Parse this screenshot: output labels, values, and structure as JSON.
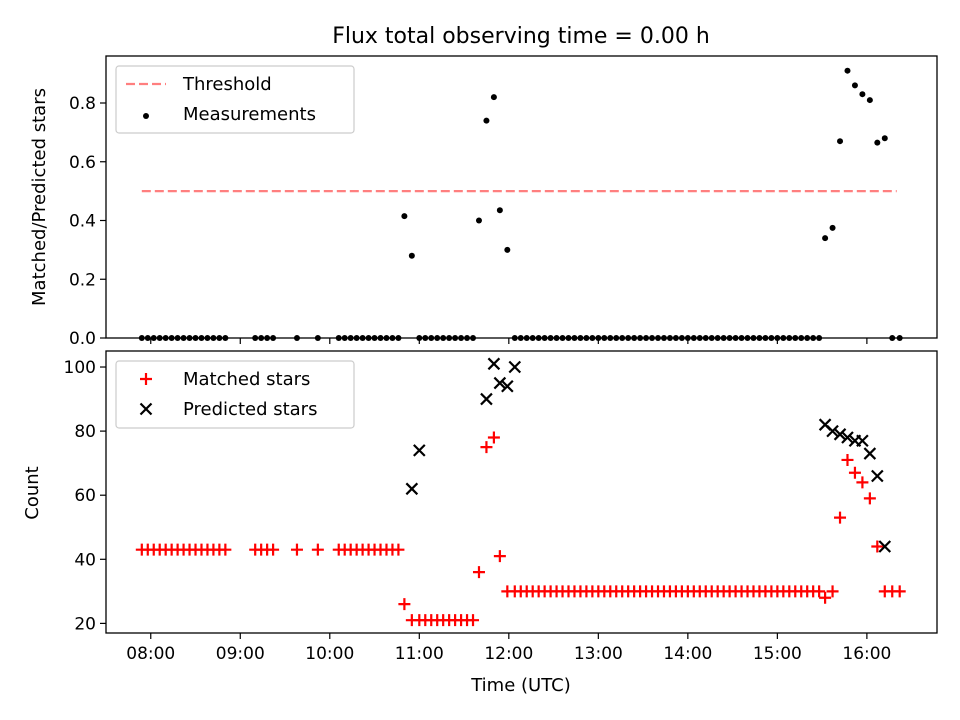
{
  "chart_data": [
    {
      "type": "scatter",
      "title": "Flux total observing time = 0.00 h",
      "xlabel": "",
      "ylabel": "Matched/Predicted stars",
      "xlim": [
        "07:30",
        "16:47"
      ],
      "ylim": [
        0,
        0.96
      ],
      "yticks": [
        0.0,
        0.2,
        0.4,
        0.6,
        0.8
      ],
      "ytick_labels": [
        "0.0",
        "0.2",
        "0.4",
        "0.6",
        "0.8"
      ],
      "legend_position": "top-left",
      "grid": false,
      "series": [
        {
          "name": "Threshold",
          "kind": "dashed-line",
          "color": "#ff7f7f",
          "x": [
            "07:54",
            "16:20"
          ],
          "y": [
            0.5,
            0.5
          ]
        },
        {
          "name": "Measurements",
          "kind": "dots",
          "color": "#000000",
          "x": [
            "07:54",
            "07:58",
            "08:02",
            "08:06",
            "08:10",
            "08:14",
            "08:18",
            "08:22",
            "08:26",
            "08:30",
            "08:34",
            "08:38",
            "08:42",
            "08:46",
            "08:50",
            "09:10",
            "09:14",
            "09:18",
            "09:22",
            "09:38",
            "09:52",
            "10:06",
            "10:10",
            "10:14",
            "10:18",
            "10:22",
            "10:26",
            "10:30",
            "10:34",
            "10:38",
            "10:42",
            "10:46",
            "10:50",
            "10:55",
            "11:00",
            "11:04",
            "11:08",
            "11:12",
            "11:16",
            "11:20",
            "11:24",
            "11:28",
            "11:32",
            "11:36",
            "11:40",
            "11:45",
            "11:50",
            "11:54",
            "11:59",
            "12:04",
            "12:08",
            "12:12",
            "12:16",
            "12:20",
            "12:24",
            "12:28",
            "12:32",
            "12:36",
            "12:40",
            "12:44",
            "12:48",
            "12:52",
            "12:56",
            "13:00",
            "13:04",
            "13:08",
            "13:12",
            "13:16",
            "13:20",
            "13:24",
            "13:28",
            "13:32",
            "13:36",
            "13:40",
            "13:44",
            "13:48",
            "13:52",
            "13:56",
            "14:00",
            "14:04",
            "14:08",
            "14:12",
            "14:16",
            "14:20",
            "14:24",
            "14:28",
            "14:32",
            "14:36",
            "14:40",
            "14:44",
            "14:48",
            "14:52",
            "14:56",
            "15:00",
            "15:04",
            "15:08",
            "15:12",
            "15:16",
            "15:20",
            "15:24",
            "15:28",
            "15:32",
            "15:37",
            "15:42",
            "15:47",
            "15:52",
            "15:57",
            "16:02",
            "16:07",
            "16:12",
            "16:17",
            "16:22"
          ],
          "y": [
            0,
            0,
            0,
            0,
            0,
            0,
            0,
            0,
            0,
            0,
            0,
            0,
            0,
            0,
            0,
            0,
            0,
            0,
            0,
            0,
            0,
            0,
            0,
            0,
            0,
            0,
            0,
            0,
            0,
            0,
            0,
            0,
            0.415,
            0.28,
            0,
            0,
            0,
            0,
            0,
            0,
            0,
            0,
            0,
            0,
            0.4,
            0.74,
            0.82,
            0.435,
            0.3,
            0,
            0,
            0,
            0,
            0,
            0,
            0,
            0,
            0,
            0,
            0,
            0,
            0,
            0,
            0,
            0,
            0,
            0,
            0,
            0,
            0,
            0,
            0,
            0,
            0,
            0,
            0,
            0,
            0,
            0,
            0,
            0,
            0,
            0,
            0,
            0,
            0,
            0,
            0,
            0,
            0,
            0,
            0,
            0,
            0,
            0,
            0,
            0,
            0,
            0,
            0,
            0,
            0.34,
            0.375,
            0.67,
            0.91,
            0.86,
            0.83,
            0.81,
            0.665,
            0.68,
            0,
            0
          ]
        }
      ]
    },
    {
      "type": "scatter",
      "title": "",
      "xlabel": "Time (UTC)",
      "ylabel": "Count",
      "xlim": [
        "07:30",
        "16:47"
      ],
      "ylim": [
        17,
        105
      ],
      "yticks": [
        20,
        40,
        60,
        80,
        100
      ],
      "ytick_labels": [
        "20",
        "40",
        "60",
        "80",
        "100"
      ],
      "xticks": [
        "08:00",
        "09:00",
        "10:00",
        "11:00",
        "12:00",
        "13:00",
        "14:00",
        "15:00",
        "16:00"
      ],
      "xtick_labels": [
        "08:00",
        "09:00",
        "10:00",
        "11:00",
        "12:00",
        "13:00",
        "14:00",
        "15:00",
        "16:00"
      ],
      "legend_position": "top-left",
      "grid": false,
      "series": [
        {
          "name": "Matched stars",
          "kind": "plus",
          "color": "#ff0000",
          "x": [
            "07:54",
            "07:58",
            "08:02",
            "08:06",
            "08:10",
            "08:14",
            "08:18",
            "08:22",
            "08:26",
            "08:30",
            "08:34",
            "08:38",
            "08:42",
            "08:46",
            "08:50",
            "09:10",
            "09:14",
            "09:18",
            "09:22",
            "09:38",
            "09:52",
            "10:06",
            "10:10",
            "10:14",
            "10:18",
            "10:22",
            "10:26",
            "10:30",
            "10:34",
            "10:38",
            "10:42",
            "10:46",
            "10:50",
            "10:55",
            "11:00",
            "11:04",
            "11:08",
            "11:12",
            "11:16",
            "11:20",
            "11:24",
            "11:28",
            "11:32",
            "11:36",
            "11:40",
            "11:45",
            "11:50",
            "11:54",
            "11:59",
            "12:04",
            "12:08",
            "12:12",
            "12:16",
            "12:20",
            "12:24",
            "12:28",
            "12:32",
            "12:36",
            "12:40",
            "12:44",
            "12:48",
            "12:52",
            "12:56",
            "13:00",
            "13:04",
            "13:08",
            "13:12",
            "13:16",
            "13:20",
            "13:24",
            "13:28",
            "13:32",
            "13:36",
            "13:40",
            "13:44",
            "13:48",
            "13:52",
            "13:56",
            "14:00",
            "14:04",
            "14:08",
            "14:12",
            "14:16",
            "14:20",
            "14:24",
            "14:28",
            "14:32",
            "14:36",
            "14:40",
            "14:44",
            "14:48",
            "14:52",
            "14:56",
            "15:00",
            "15:04",
            "15:08",
            "15:12",
            "15:16",
            "15:20",
            "15:24",
            "15:28",
            "15:32",
            "15:37",
            "15:42",
            "15:47",
            "15:52",
            "15:57",
            "16:02",
            "16:07",
            "16:12",
            "16:17",
            "16:22"
          ],
          "y": [
            43,
            43,
            43,
            43,
            43,
            43,
            43,
            43,
            43,
            43,
            43,
            43,
            43,
            43,
            43,
            43,
            43,
            43,
            43,
            43,
            43,
            43,
            43,
            43,
            43,
            43,
            43,
            43,
            43,
            43,
            43,
            43,
            26,
            21,
            21,
            21,
            21,
            21,
            21,
            21,
            21,
            21,
            21,
            21,
            36,
            75,
            78,
            41,
            30,
            30,
            30,
            30,
            30,
            30,
            30,
            30,
            30,
            30,
            30,
            30,
            30,
            30,
            30,
            30,
            30,
            30,
            30,
            30,
            30,
            30,
            30,
            30,
            30,
            30,
            30,
            30,
            30,
            30,
            30,
            30,
            30,
            30,
            30,
            30,
            30,
            30,
            30,
            30,
            30,
            30,
            30,
            30,
            30,
            30,
            30,
            30,
            30,
            30,
            30,
            30,
            30,
            28,
            30,
            53,
            71,
            67,
            64,
            59,
            44,
            30,
            30,
            30
          ]
        },
        {
          "name": "Predicted stars",
          "kind": "x",
          "color": "#000000",
          "x": [
            "10:55",
            "11:00",
            "11:45",
            "11:50",
            "11:54",
            "11:59",
            "12:04",
            "15:32",
            "15:37",
            "15:42",
            "15:47",
            "15:52",
            "15:57",
            "16:02",
            "16:07",
            "16:12"
          ],
          "y": [
            62,
            74,
            90,
            101,
            95,
            94,
            100,
            82,
            80,
            79,
            78,
            77,
            77,
            73,
            66,
            44
          ]
        }
      ]
    }
  ]
}
